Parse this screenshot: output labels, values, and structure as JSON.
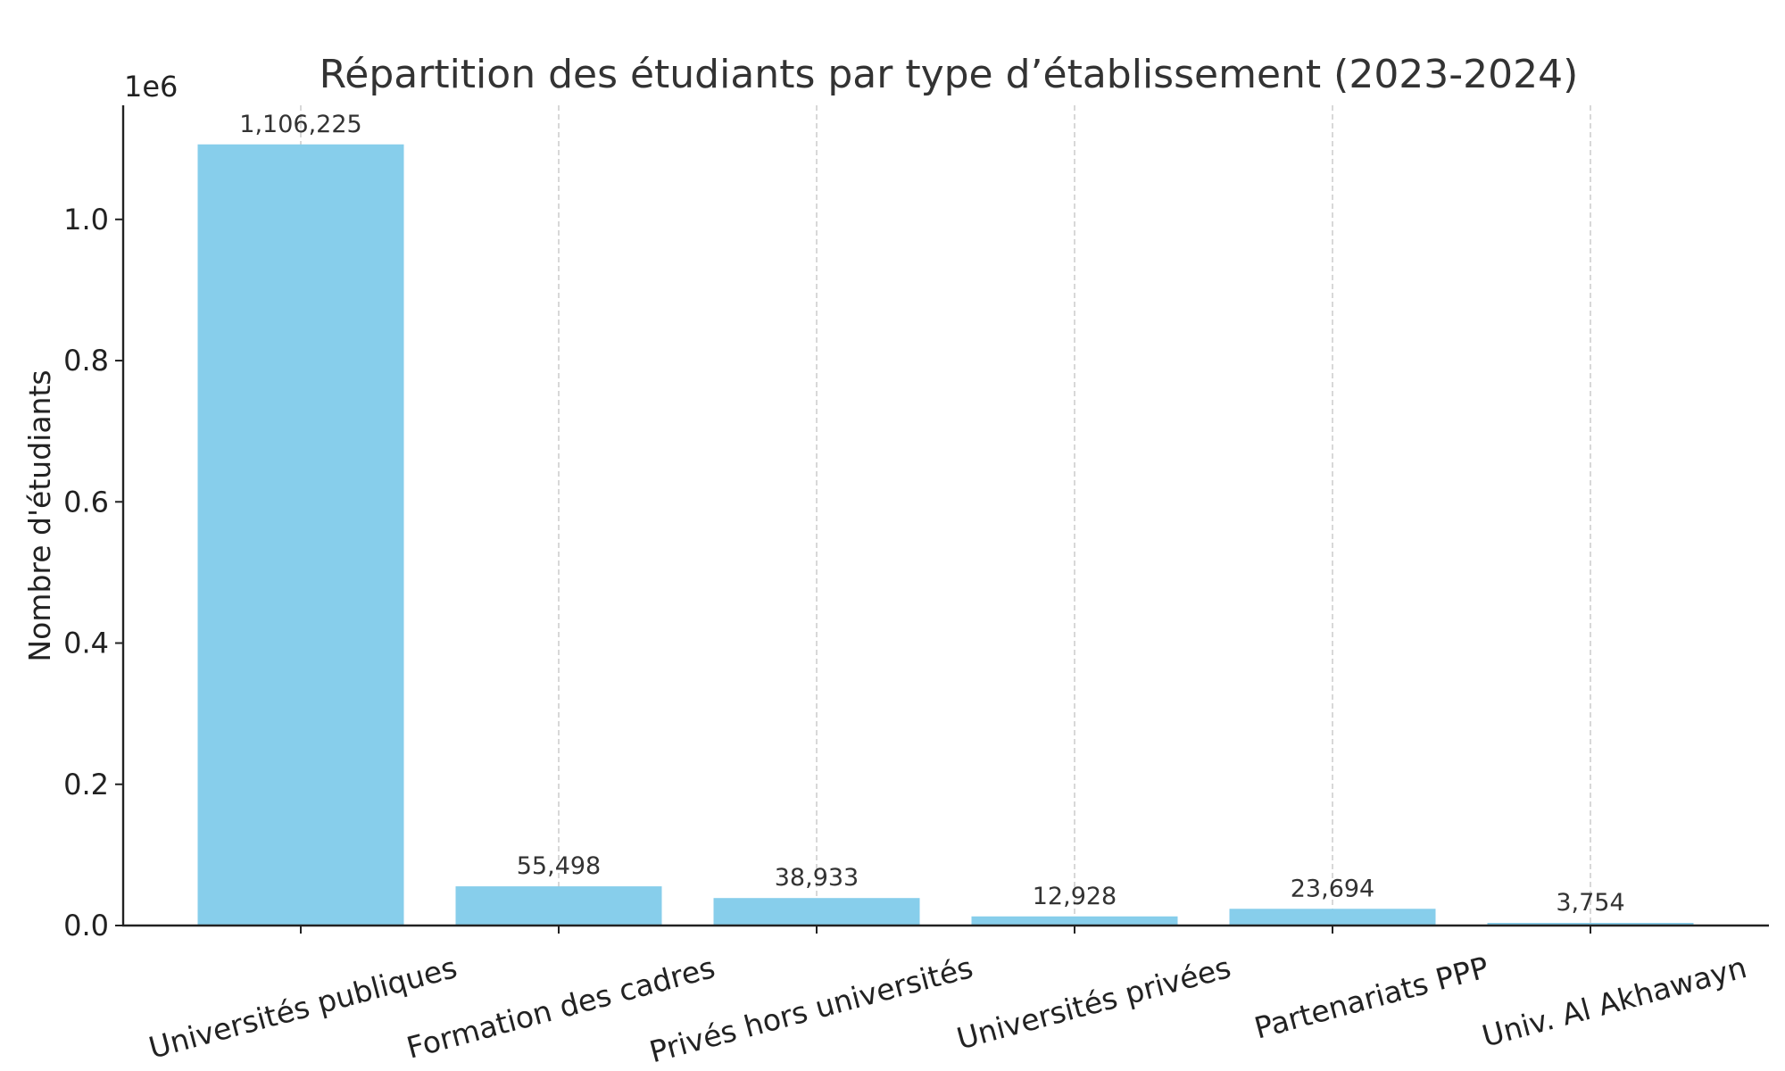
{
  "chart_data": {
    "type": "bar",
    "title": "Répartition des étudiants par type d’établissement (2023-2024)",
    "xlabel": "",
    "ylabel": "Nombre d'étudiants",
    "y_offset_label": "1e6",
    "categories": [
      "Universités publiques",
      "Formation des cadres",
      "Privés hors universités",
      "Universités privées",
      "Partenariats PPP",
      "Univ. Al Akhawayn"
    ],
    "values": [
      1106225,
      55498,
      38933,
      12928,
      23694,
      3754
    ],
    "data_labels": [
      "1,106,225",
      "55,498",
      "38,933",
      "12,928",
      "23,694",
      "3,754"
    ],
    "yticks": [
      0,
      200000,
      400000,
      600000,
      800000,
      1000000
    ],
    "ytick_labels": [
      "0.0",
      "0.2",
      "0.4",
      "0.6",
      "0.8",
      "1.0"
    ],
    "ylim": [
      0,
      1161536
    ],
    "grid": "x-dashed",
    "colors": {
      "bar": "#87ceeb",
      "grid": "#c8c8c8",
      "axis": "#222222",
      "text": "#333333"
    }
  }
}
